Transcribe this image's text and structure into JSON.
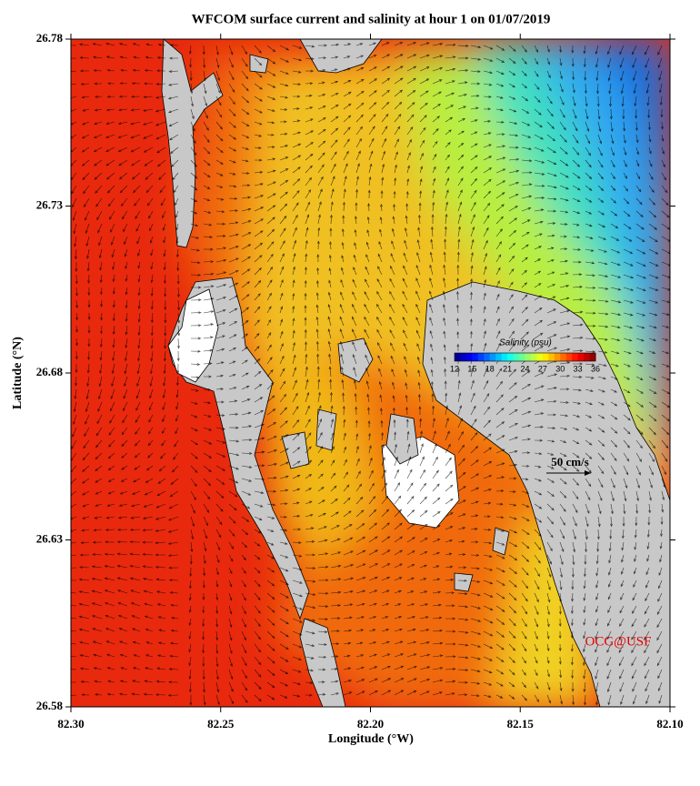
{
  "chart_data": {
    "type": "map",
    "title": "WFCOM surface current and salinity at hour 1 on 01/07/2019",
    "xlabel": "Longitude (°W)",
    "ylabel": "Latitude (°N)",
    "xlim": [
      82.3,
      82.1
    ],
    "xticks": [
      {
        "value": 82.3,
        "label": "82.30"
      },
      82.25,
      {
        "value": 82.2,
        "label": "82.20"
      },
      82.15,
      {
        "value": 82.1,
        "label": "82.10"
      }
    ],
    "ylim": [
      26.58,
      26.78
    ],
    "yticks": [
      26.58,
      26.63,
      26.68,
      26.73,
      26.78
    ],
    "colorbar": {
      "title": "Salinity (psu)",
      "lim": [
        12,
        36
      ],
      "ticks": [
        12,
        15,
        18,
        21,
        24,
        27,
        30,
        33,
        36
      ]
    },
    "scale_label": "50 cm/s",
    "credit": "OCG@USF"
  }
}
